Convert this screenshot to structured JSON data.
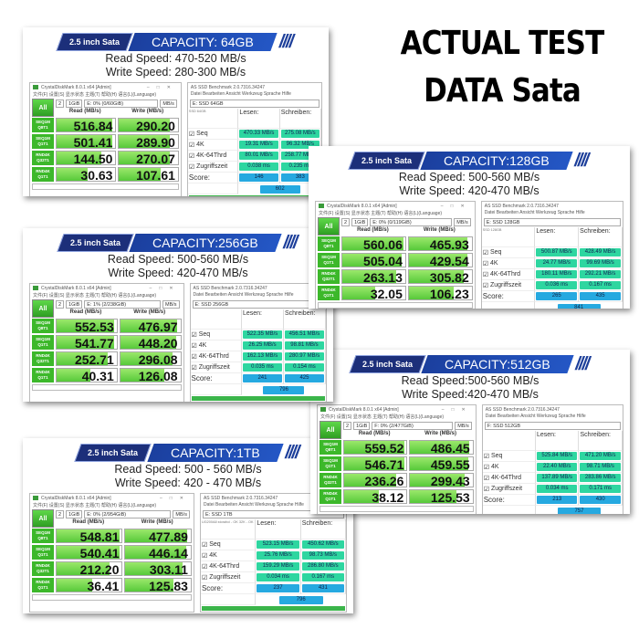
{
  "headline": [
    "ACTUAL TEST",
    "DATA Sata"
  ],
  "colors": {
    "banner_dark": "#1c2f7a",
    "banner_blue": "#2457c5",
    "cdm_green": "#3cb82a",
    "asssd_teal": "#2ed6a0",
    "asssd_score": "#26a9e0"
  },
  "common": {
    "sata_label": "2.5 inch Sata",
    "cdm_title": "CrystalDiskMark 8.0.1 x64 [Admin]",
    "cdm_menu": "文件(F) 设置(S) 显示状态 主题(T) 帮助(H) 语言(L)(Language)",
    "cdm_all": "All",
    "cdm_loops": "2",
    "cdm_size": "1GiB",
    "cdm_unit": "MB/s",
    "cdm_read_header": "Read (MB/s)",
    "cdm_write_header": "Write (MB/s)",
    "cdm_row_labels": [
      [
        "SEQ1M",
        "Q8T1"
      ],
      [
        "SEQ1M",
        "Q1T1"
      ],
      [
        "RND4K",
        "Q32T1"
      ],
      [
        "RND4K",
        "Q1T1"
      ]
    ],
    "as_title": "AS SSD Benchmark 2.0.7316.34247",
    "as_menu": "Datei  Bearbeiten  Ansicht  Werkzeug  Sprache  Hilfe",
    "as_lesen": "Lesen:",
    "as_schreiben": "Schreiben:",
    "as_rows": [
      "Seq",
      "4K",
      "4K-64Thrd",
      "Zugriffszeit"
    ],
    "as_score": "Score:"
  },
  "panels": [
    {
      "capacity": "CAPACITY: 64GB",
      "read_speed": "Read Speed: 470-520 MB/s",
      "write_speed": "Write Speed: 280-300 MB/s",
      "drive": "E: 0% (0/60GiB)",
      "cdm_read": [
        "516.84",
        "501.41",
        "144.50",
        "30.63"
      ],
      "cdm_write": [
        "290.20",
        "289.90",
        "270.07",
        "107.61"
      ],
      "as_drive": "E: SSD 64GB",
      "as_info": "SSD 64GB",
      "as_read": [
        "470.33 MB/s",
        "19.31 MB/s",
        "80.01 MB/s",
        "0.038 ms"
      ],
      "as_write": [
        "275.08 MB/s",
        "96.32 MB/s",
        "258.77 MB/s",
        "0.235 ms"
      ],
      "score_read": "146",
      "score_write": "383",
      "score_total": "602"
    },
    {
      "capacity": "CAPACITY:128GB",
      "read_speed": "Read Speed: 500-560 MB/s",
      "write_speed": "Write Speed: 420-470 MB/s",
      "drive": "E: 0% (0/119GiB)",
      "cdm_read": [
        "560.06",
        "505.04",
        "263.13",
        "32.05"
      ],
      "cdm_write": [
        "465.93",
        "429.54",
        "305.82",
        "106.23"
      ],
      "as_drive": "E: SSD 128GB",
      "as_info": "SSD 128GB",
      "as_read": [
        "500.87 MB/s",
        "24.77 MB/s",
        "180.11 MB/s",
        "0.036 ms"
      ],
      "as_write": [
        "428.49 MB/s",
        "99.69 MB/s",
        "292.21 MB/s",
        "0.167 ms"
      ],
      "score_read": "265",
      "score_write": "435",
      "score_total": "841"
    },
    {
      "capacity": "CAPACITY:256GB",
      "read_speed": "Read Speed: 500-560 MB/s",
      "write_speed": "Write Speed: 420-470 MB/s",
      "drive": "E: 1% (2/238GiB)",
      "cdm_read": [
        "552.53",
        "541.77",
        "252.71",
        "40.31"
      ],
      "cdm_write": [
        "476.97",
        "448.20",
        "296.08",
        "126.08"
      ],
      "as_drive": "E: SSD 256GB",
      "as_info": "",
      "as_read": [
        "522.35 MB/s",
        "26.25 MB/s",
        "162.13 MB/s",
        "0.035 ms"
      ],
      "as_write": [
        "456.51 MB/s",
        "98.81 MB/s",
        "280.97 MB/s",
        "0.154 ms"
      ],
      "score_read": "241",
      "score_write": "425",
      "score_total": "796"
    },
    {
      "capacity": "CAPACITY:512GB",
      "read_speed": "Read Speed:500-560 MB/s",
      "write_speed": "Write Speed:420-470 MB/s",
      "drive": "F: 0% (2/477GiB)",
      "cdm_read": [
        "559.52",
        "546.71",
        "236.26",
        "38.12"
      ],
      "cdm_write": [
        "486.45",
        "459.55",
        "299.43",
        "125.53"
      ],
      "as_drive": "F: SSD 512GB",
      "as_info": "",
      "as_read": [
        "525.84 MB/s",
        "22.40 MB/s",
        "137.89 MB/s",
        "0.034 ms"
      ],
      "as_write": [
        "471.20 MB/s",
        "98.71 MB/s",
        "283.86 MB/s",
        "0.171 ms"
      ],
      "score_read": "213",
      "score_write": "430",
      "score_total": "757"
    },
    {
      "capacity": "CAPACITY:1TB",
      "read_speed": "Read Speed: 500 - 560 MB/s",
      "write_speed": "Write Speed: 420 - 470 MB/s",
      "drive": "E: 0% (2/954GiB)",
      "cdm_read": [
        "548.81",
        "540.41",
        "212.20",
        "36.41"
      ],
      "cdm_write": [
        "477.89",
        "446.14",
        "303.11",
        "125.83"
      ],
      "as_drive": "E: SSD 1TB",
      "as_info": "UG200A8 storahci - OK 32K - OK",
      "as_read": [
        "523.15 MB/s",
        "25.76 MB/s",
        "159.29 MB/s",
        "0.034 ms"
      ],
      "as_write": [
        "450.62 MB/s",
        "98.73 MB/s",
        "286.80 MB/s",
        "0.167 ms"
      ],
      "score_read": "237",
      "score_write": "431",
      "score_total": "796"
    }
  ]
}
